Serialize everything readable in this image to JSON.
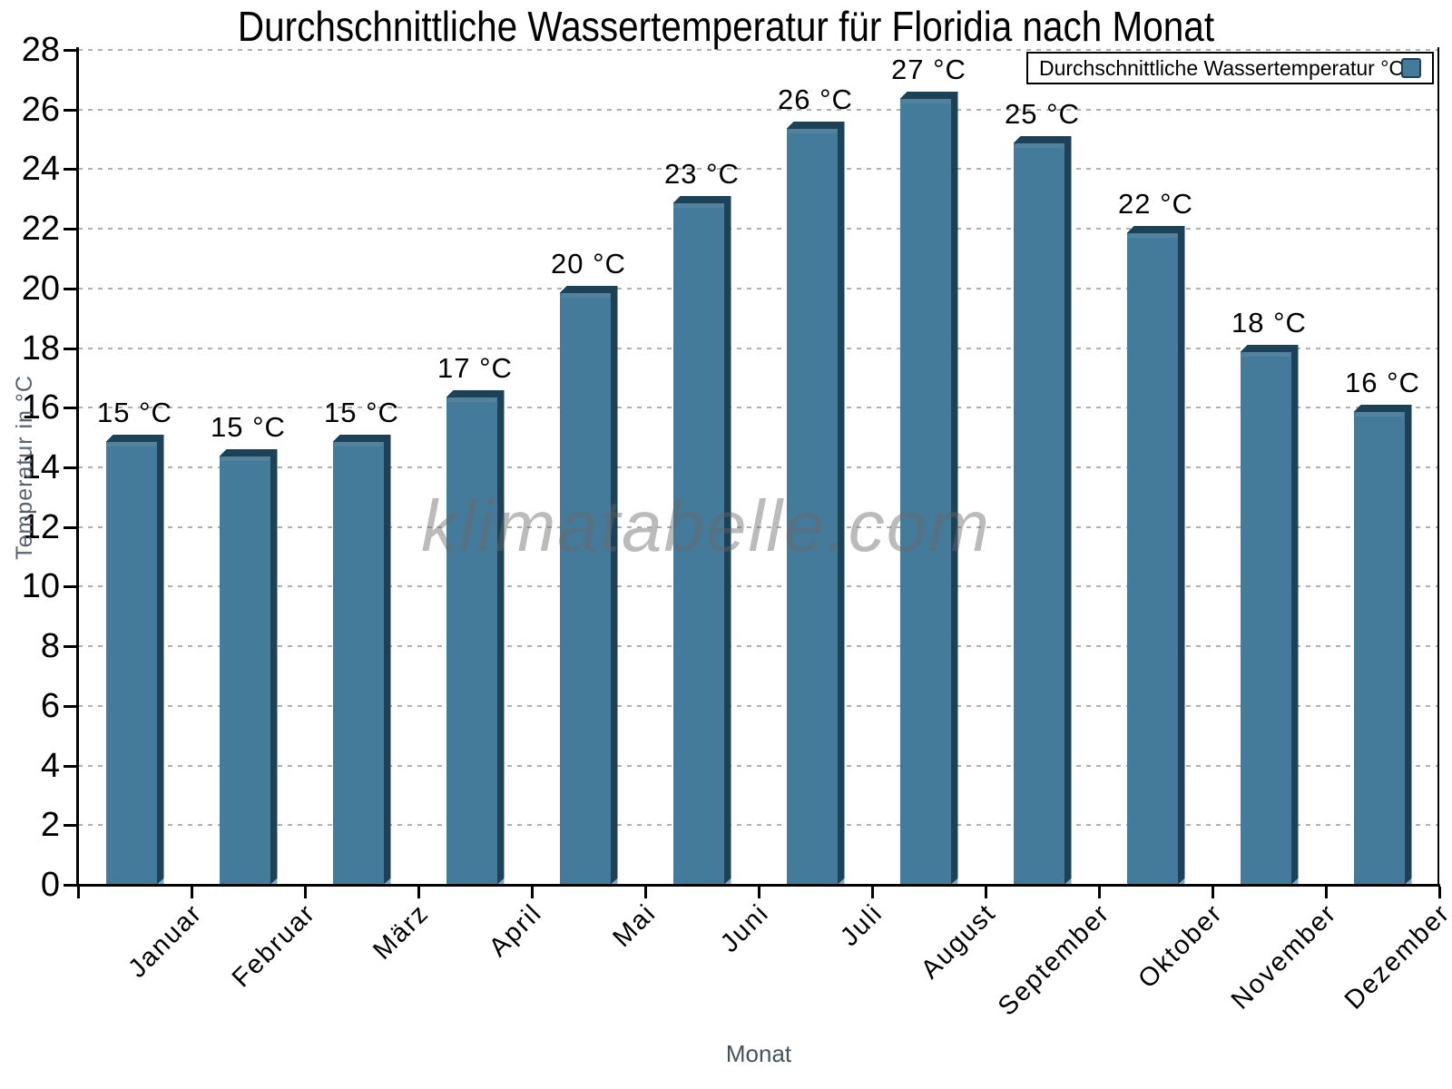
{
  "chart_data": {
    "type": "bar",
    "title": "Durchschnittliche Wassertemperatur für Floridia nach Monat",
    "xlabel": "Monat",
    "ylabel": "Temperatur in °C",
    "categories": [
      "Januar",
      "Februar",
      "März",
      "April",
      "Mai",
      "Juni",
      "Juli",
      "August",
      "September",
      "Oktober",
      "November",
      "Dezember"
    ],
    "values": [
      15.1,
      14.6,
      15.1,
      16.6,
      20.1,
      23.1,
      25.6,
      26.6,
      25.1,
      22.1,
      18.1,
      16.1
    ],
    "bar_labels": [
      "15 °C",
      "15 °C",
      "15 °C",
      "17 °C",
      "20 °C",
      "23 °C",
      "26 °C",
      "27 °C",
      "25 °C",
      "22 °C",
      "18 °C",
      "16 °C"
    ],
    "ylim": [
      0,
      28
    ],
    "ytick_step": 2,
    "grid": "horizontal-dashed",
    "legend_position": "top-right",
    "legend_label": "Durchschnittliche Wassertemperatur °C",
    "watermark": "klimatabelle.com",
    "colors": {
      "bar_face": "#447B9A",
      "bar_edge": "#1D4156",
      "bar_highlight": "#53829E",
      "bar_bevel": "#82A9C1",
      "gridline": "#b0b0b0",
      "axis": "#000000",
      "axis_title": "#55636F"
    }
  }
}
